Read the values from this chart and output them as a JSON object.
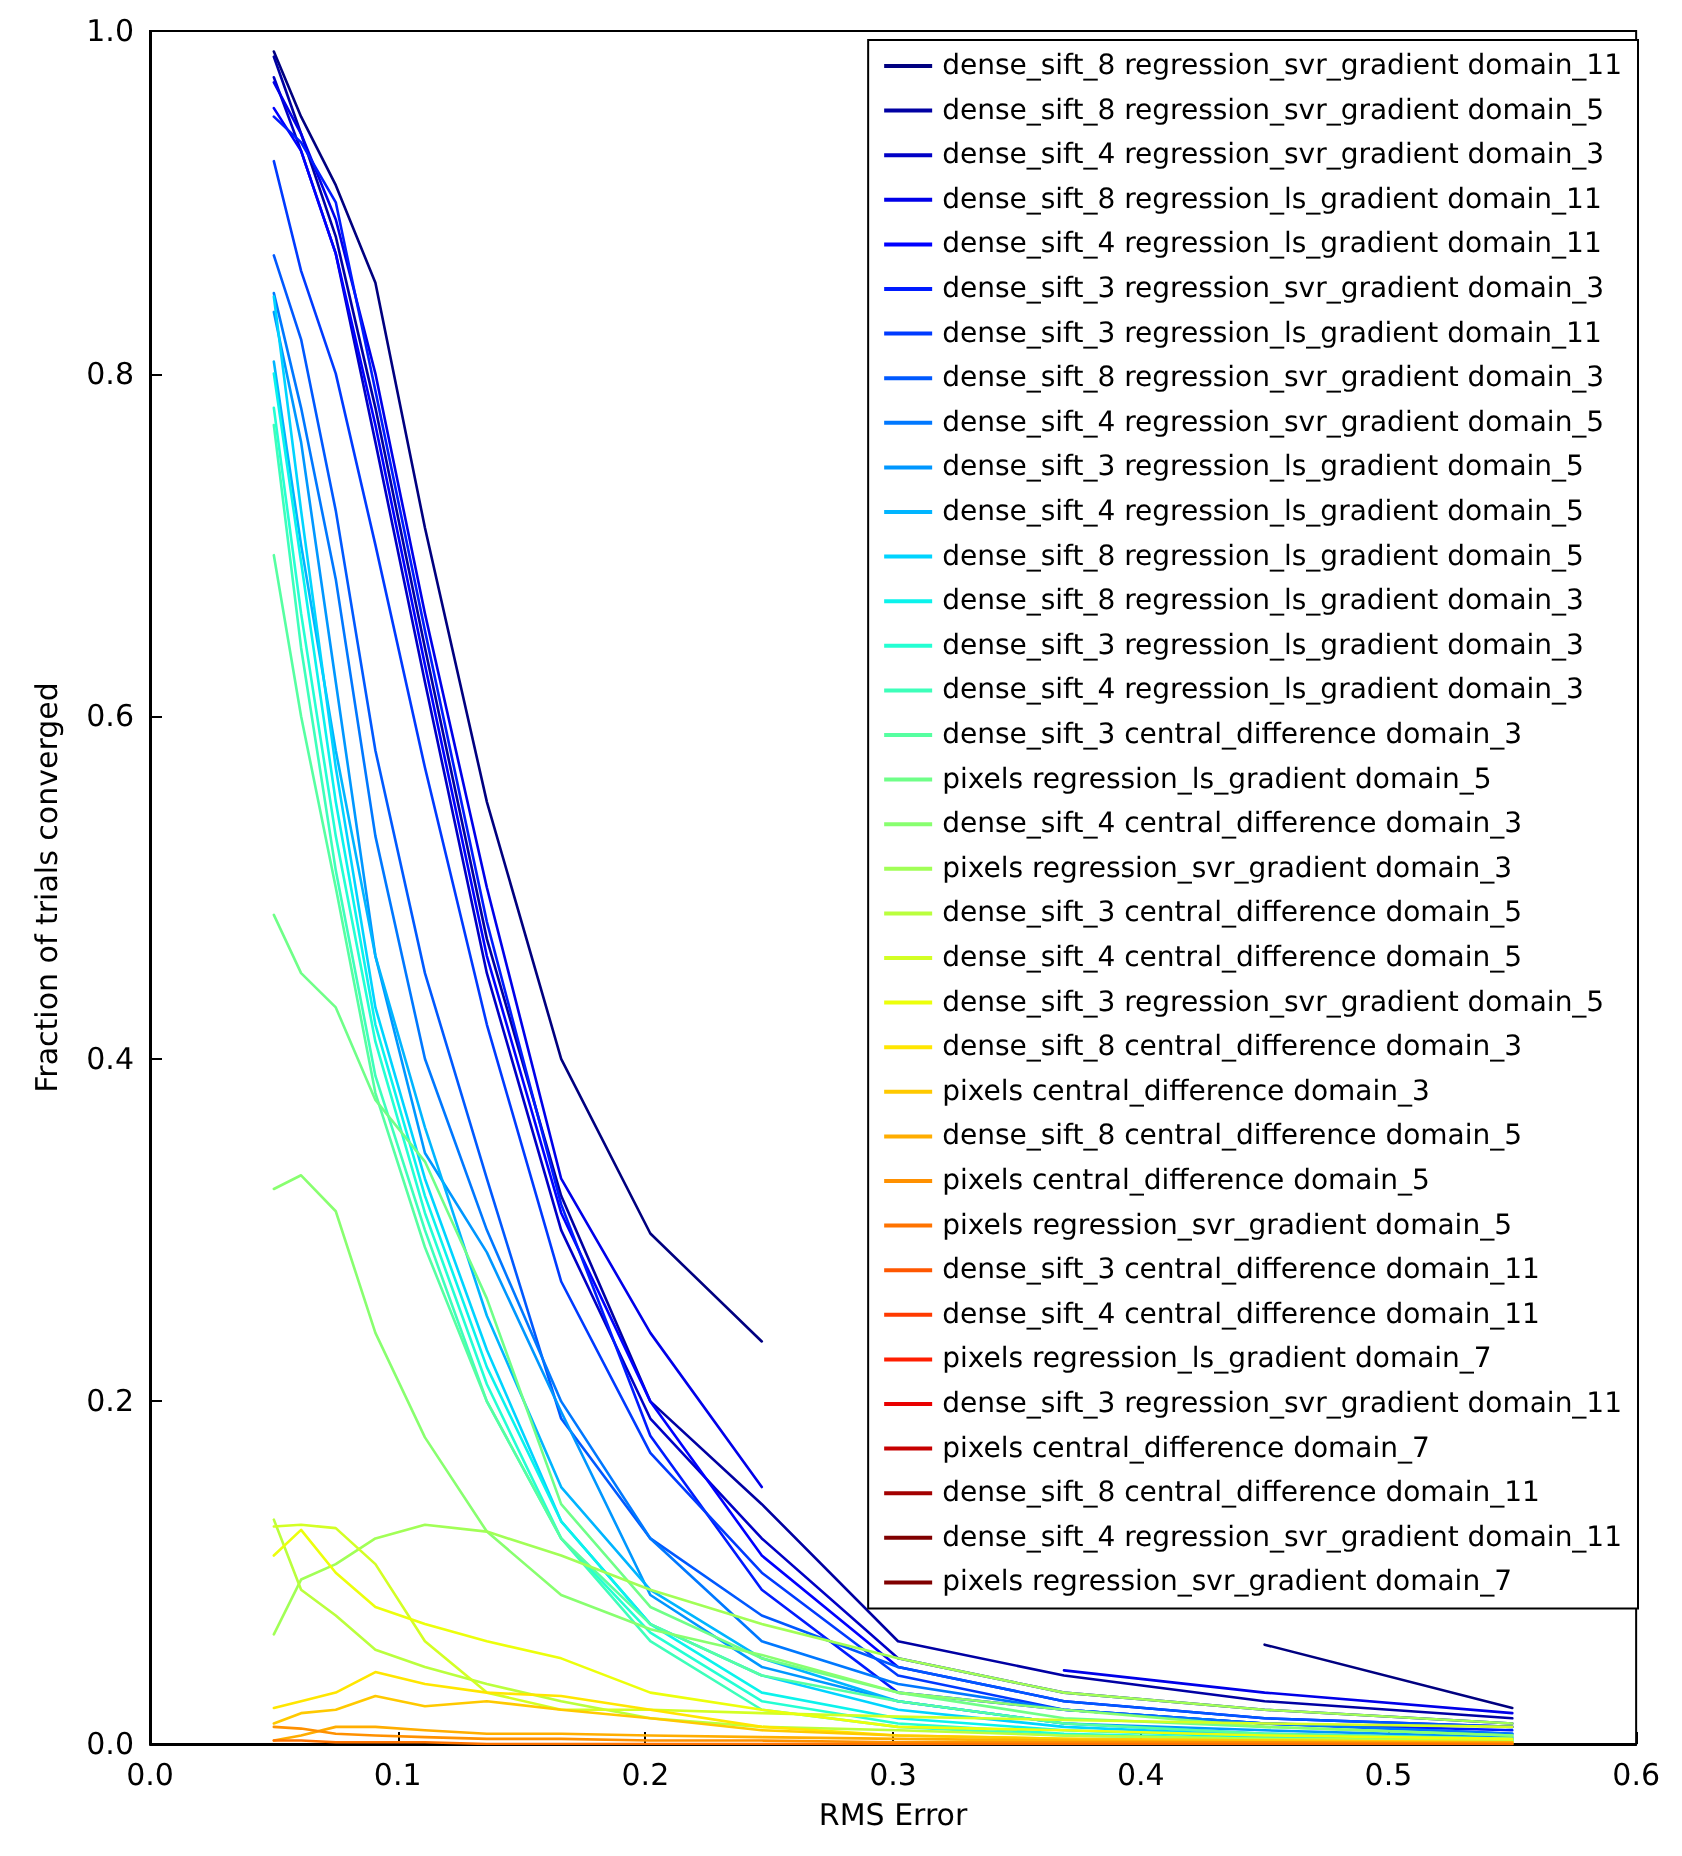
{
  "chart_data": {
    "type": "line",
    "xlabel": "RMS Error",
    "ylabel": "Fraction of trials converged",
    "x": [
      0.05,
      0.061,
      0.075,
      0.091,
      0.111,
      0.136,
      0.166,
      0.202,
      0.247,
      0.302,
      0.369,
      0.45,
      0.55
    ],
    "xlim": [
      0,
      0.6
    ],
    "xticks": [
      {
        "value": 0,
        "label": "0.0"
      },
      0.1,
      0.2,
      0.3,
      0.4,
      0.5,
      0.6
    ],
    "ylim": [
      0,
      1
    ],
    "yticks": [
      {
        "value": 0,
        "label": "0.0"
      },
      0.2,
      0.4,
      0.6,
      0.8,
      {
        "value": 1,
        "label": "1.0"
      }
    ],
    "legend": "top right",
    "marker": "none",
    "line_style": "solid",
    "series": [
      {
        "name": "dense_sift_8 regression_svr_gradient domain_11",
        "color": "#000080",
        "values": [
          0.988,
          0.95,
          0.91,
          0.853,
          0.71,
          0.55,
          0.4,
          0.298,
          0.235,
          null,
          null,
          0.058,
          0.021
        ]
      },
      {
        "name": "dense_sift_8 regression_svr_gradient domain_5",
        "color": "#0000a3",
        "values": [
          0.985,
          0.94,
          0.88,
          0.78,
          0.64,
          0.47,
          0.32,
          0.2,
          0.14,
          0.06,
          0.04,
          0.025,
          0.015
        ]
      },
      {
        "name": "dense_sift_4 regression_svr_gradient domain_3",
        "color": "#0000c6",
        "values": [
          0.973,
          0.93,
          0.87,
          0.76,
          0.62,
          0.45,
          0.3,
          0.19,
          0.12,
          0.05,
          0.03,
          0.02,
          0.012
        ]
      },
      {
        "name": "dense_sift_8 regression_ls_gradient domain_11",
        "color": "#0000e9",
        "values": [
          0.97,
          0.94,
          0.89,
          0.8,
          0.66,
          0.5,
          0.33,
          0.24,
          0.15,
          null,
          0.043,
          0.03,
          0.018
        ]
      },
      {
        "name": "dense_sift_4 regression_ls_gradient domain_11",
        "color": "#0000ff",
        "values": [
          0.955,
          0.93,
          0.87,
          0.77,
          0.63,
          0.46,
          0.31,
          0.2,
          0.11,
          0.045,
          0.025,
          0.015,
          0.01
        ]
      },
      {
        "name": "dense_sift_3 regression_svr_gradient domain_3",
        "color": "#001bff",
        "values": [
          0.95,
          0.935,
          0.9,
          0.79,
          0.65,
          0.48,
          0.315,
          0.18,
          0.09,
          0.03,
          0.02,
          0.012,
          0.008
        ]
      },
      {
        "name": "dense_sift_3 regression_ls_gradient domain_11",
        "color": "#003aff",
        "values": [
          0.924,
          0.86,
          0.8,
          0.7,
          0.57,
          0.42,
          0.27,
          0.17,
          0.1,
          0.04,
          0.02,
          0.012,
          0.006
        ]
      },
      {
        "name": "dense_sift_8 regression_svr_gradient domain_3",
        "color": "#0059ff",
        "values": [
          0.869,
          0.82,
          0.72,
          0.58,
          0.45,
          0.33,
          0.19,
          0.12,
          0.075,
          0.045,
          0.025,
          0.015,
          0.01
        ]
      },
      {
        "name": "dense_sift_4 regression_svr_gradient domain_5",
        "color": "#0078ff",
        "values": [
          0.847,
          0.78,
          0.68,
          0.53,
          0.4,
          0.3,
          0.2,
          0.12,
          0.06,
          0.035,
          0.02,
          0.012,
          0.006
        ]
      },
      {
        "name": "dense_sift_3 regression_ls_gradient domain_5",
        "color": "#0097ff",
        "values": [
          0.836,
          0.76,
          0.62,
          0.46,
          0.345,
          0.287,
          0.194,
          0.087,
          0.045,
          0.025,
          0.012,
          0.008,
          0.004
        ]
      },
      {
        "name": "dense_sift_4 regression_ls_gradient domain_5",
        "color": "#00b5ff",
        "values": [
          0.807,
          0.7,
          0.58,
          0.46,
          0.36,
          0.25,
          0.15,
          0.09,
          0.05,
          0.025,
          0.012,
          0.006,
          0.003
        ]
      },
      {
        "name": "dense_sift_8 regression_ls_gradient domain_5",
        "color": "#00d4ff",
        "values": [
          0.845,
          0.72,
          0.57,
          0.43,
          0.33,
          0.23,
          0.13,
          0.07,
          0.04,
          0.02,
          0.01,
          0.005,
          0.003
        ]
      },
      {
        "name": "dense_sift_8 regression_ls_gradient domain_3",
        "color": "#0bf3ec",
        "values": [
          0.8,
          0.69,
          0.55,
          0.42,
          0.32,
          0.22,
          0.13,
          0.07,
          0.03,
          0.015,
          0.008,
          0.004,
          0.002
        ]
      },
      {
        "name": "dense_sift_3 regression_ls_gradient domain_3",
        "color": "#24ffd3",
        "values": [
          0.78,
          0.66,
          0.53,
          0.41,
          0.31,
          0.21,
          0.12,
          0.065,
          0.025,
          0.012,
          0.006,
          0.003,
          0.002
        ]
      },
      {
        "name": "dense_sift_4 regression_ls_gradient domain_3",
        "color": "#3dffba",
        "values": [
          0.77,
          0.64,
          0.51,
          0.39,
          0.3,
          0.2,
          0.12,
          0.06,
          0.02,
          0.01,
          0.005,
          0.003,
          0.001
        ]
      },
      {
        "name": "dense_sift_3 central_difference domain_3",
        "color": "#56ffa1",
        "values": [
          0.694,
          0.6,
          0.5,
          0.38,
          0.29,
          0.2,
          0.12,
          0.07,
          0.04,
          0.025,
          0.012,
          0.006,
          0.003
        ]
      },
      {
        "name": "pixels regression_ls_gradient domain_5",
        "color": "#6fff88",
        "values": [
          0.484,
          0.45,
          0.43,
          0.376,
          0.34,
          0.26,
          0.14,
          0.08,
          0.05,
          0.03,
          0.015,
          0.01,
          0.005
        ]
      },
      {
        "name": "dense_sift_4 central_difference domain_3",
        "color": "#88ff6f",
        "values": [
          0.324,
          0.332,
          0.311,
          0.24,
          0.179,
          0.124,
          0.087,
          0.067,
          0.052,
          0.03,
          0.02,
          0.01,
          0.005
        ]
      },
      {
        "name": "pixels regression_svr_gradient domain_3",
        "color": "#a1ff56",
        "values": [
          0.064,
          0.096,
          0.105,
          0.12,
          0.128,
          0.124,
          0.11,
          0.09,
          0.07,
          0.05,
          0.03,
          0.02,
          0.012
        ]
      },
      {
        "name": "dense_sift_3 central_difference domain_5",
        "color": "#baff3d",
        "values": [
          0.131,
          0.09,
          0.075,
          0.055,
          0.045,
          0.035,
          0.025,
          0.015,
          0.01,
          0.008,
          0.005,
          0.003,
          0.002
        ]
      },
      {
        "name": "dense_sift_4 central_difference domain_5",
        "color": "#d3ff24",
        "values": [
          0.127,
          0.128,
          0.126,
          0.105,
          0.06,
          0.03,
          0.02,
          0.02,
          0.018,
          0.016,
          0.014,
          0.012,
          0.01
        ]
      },
      {
        "name": "dense_sift_3 regression_svr_gradient domain_5",
        "color": "#ecff0b",
        "values": [
          0.11,
          0.125,
          0.1,
          0.08,
          0.07,
          0.06,
          0.05,
          0.03,
          0.02,
          0.01,
          0.008,
          0.005,
          0.003
        ]
      },
      {
        "name": "dense_sift_8 central_difference domain_3",
        "color": "#ffe600",
        "values": [
          0.021,
          0.025,
          0.03,
          0.042,
          0.035,
          0.03,
          0.028,
          0.02,
          0.01,
          0.005,
          0.003,
          0.002,
          0.001
        ]
      },
      {
        "name": "pixels central_difference domain_3",
        "color": "#ffc900",
        "values": [
          0.012,
          0.018,
          0.02,
          0.028,
          0.022,
          0.025,
          0.02,
          0.015,
          0.008,
          0.005,
          0.003,
          0.002,
          0.001
        ]
      },
      {
        "name": "dense_sift_8 central_difference domain_5",
        "color": "#ffad00",
        "values": [
          0.002,
          0.005,
          0.01,
          0.01,
          0.008,
          0.006,
          0.006,
          0.005,
          0.004,
          0.003,
          0.002,
          0.001,
          0.001
        ]
      },
      {
        "name": "pixels central_difference domain_5",
        "color": "#ff9000",
        "values": [
          0.01,
          0.009,
          0.006,
          0.005,
          0.004,
          0.003,
          0.003,
          0.002,
          0.002,
          0.001,
          0.001,
          0.001,
          0
        ]
      },
      {
        "name": "pixels regression_svr_gradient domain_5",
        "color": "#ff7300",
        "values": [
          0.002,
          0.002,
          0.001,
          0.001,
          0.001,
          0,
          0,
          0,
          0,
          0,
          0,
          0,
          0
        ]
      },
      {
        "name": "dense_sift_3 central_difference domain_11",
        "color": "#ff5700",
        "values": [
          null,
          null,
          null,
          null,
          null,
          null,
          null,
          null,
          null,
          null,
          null,
          null,
          null
        ]
      },
      {
        "name": "dense_sift_4 central_difference domain_11",
        "color": "#ff3a00",
        "values": [
          null,
          null,
          null,
          null,
          null,
          null,
          null,
          null,
          null,
          null,
          null,
          null,
          null
        ]
      },
      {
        "name": "pixels regression_ls_gradient domain_7",
        "color": "#ff1e00",
        "values": [
          null,
          null,
          null,
          null,
          null,
          null,
          null,
          null,
          null,
          null,
          null,
          null,
          null
        ]
      },
      {
        "name": "dense_sift_3 regression_svr_gradient domain_11",
        "color": "#e90000",
        "values": [
          null,
          null,
          null,
          null,
          null,
          null,
          null,
          null,
          null,
          null,
          null,
          null,
          null
        ]
      },
      {
        "name": "pixels central_difference domain_7",
        "color": "#c60000",
        "values": [
          null,
          null,
          null,
          null,
          null,
          null,
          null,
          null,
          null,
          null,
          null,
          null,
          null
        ]
      },
      {
        "name": "dense_sift_8 central_difference domain_11",
        "color": "#a30000",
        "values": [
          null,
          null,
          null,
          null,
          null,
          null,
          null,
          null,
          null,
          null,
          null,
          null,
          null
        ]
      },
      {
        "name": "dense_sift_4 regression_svr_gradient domain_11",
        "color": "#800000",
        "values": [
          null,
          null,
          null,
          null,
          null,
          null,
          null,
          null,
          null,
          null,
          null,
          null,
          null
        ]
      },
      {
        "name": "pixels regression_svr_gradient domain_7",
        "color": "#800000",
        "values": [
          null,
          null,
          null,
          null,
          null,
          null,
          null,
          null,
          null,
          null,
          null,
          null,
          null
        ]
      }
    ]
  }
}
